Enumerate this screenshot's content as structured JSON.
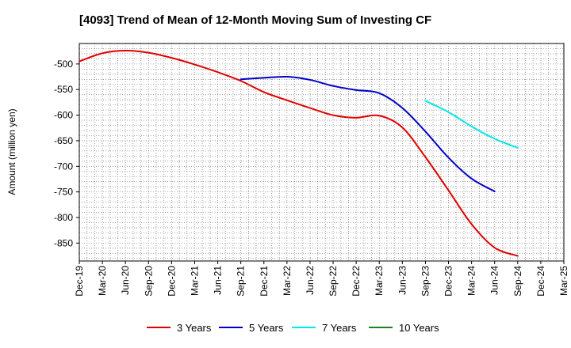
{
  "chart_data": {
    "type": "line",
    "title": "[4093]  Trend of Mean of 12-Month Moving Sum of Investing CF",
    "xlabel": "",
    "ylabel": "Amount (million yen)",
    "ylim": [
      -885,
      -460
    ],
    "y_ticks": [
      -500,
      -550,
      -600,
      -650,
      -700,
      -750,
      -800,
      -850
    ],
    "y_tick_labels": [
      "-500",
      "-550",
      "-600",
      "-650",
      "-700",
      "-750",
      "-800",
      "-850"
    ],
    "x_tick_labels": [
      "Dec-19",
      "Mar-20",
      "Jun-20",
      "Sep-20",
      "Dec-20",
      "Mar-21",
      "Jun-21",
      "Sep-21",
      "Dec-21",
      "Mar-22",
      "Jun-22",
      "Sep-22",
      "Dec-22",
      "Mar-23",
      "Jun-23",
      "Sep-23",
      "Dec-23",
      "Mar-24",
      "Jun-24",
      "Sep-24",
      "Dec-24",
      "Mar-25"
    ],
    "grid": true,
    "legend_position": "bottom",
    "series": [
      {
        "name": "3 Years",
        "color": "#e00000",
        "start_index": 0,
        "values": [
          -495,
          -479,
          -474,
          -478,
          -488,
          -501,
          -516,
          -533,
          -555,
          -571,
          -586,
          -600,
          -605,
          -601,
          -624,
          -682,
          -747,
          -813,
          -859,
          -875
        ]
      },
      {
        "name": "5 Years",
        "color": "#0000c8",
        "start_index": 7,
        "values": [
          -530,
          -527,
          -525,
          -531,
          -543,
          -551,
          -557,
          -586,
          -632,
          -683,
          -724,
          -749
        ]
      },
      {
        "name": "7 Years",
        "color": "#00e8e8",
        "start_index": 15,
        "values": [
          -572,
          -594,
          -622,
          -646,
          -664
        ]
      },
      {
        "name": "10 Years",
        "color": "#208020",
        "start_index": 0,
        "values": []
      }
    ]
  }
}
